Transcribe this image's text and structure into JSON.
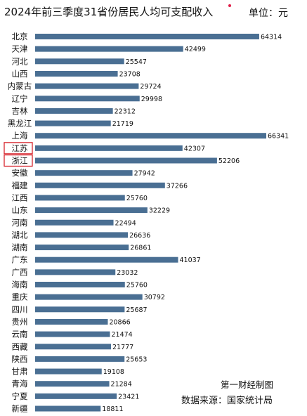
{
  "chart_data": {
    "type": "bar",
    "orientation": "horizontal",
    "title": "2024年前三季度31省份居民人均可支配收入",
    "unit": "单位：元",
    "source": "数据来源：国家统计局",
    "publisher": "第一财经制图",
    "bar_color": "#4a6f93",
    "highlight_color": "#d7262e",
    "highlighted": [
      "江苏",
      "浙江"
    ],
    "xlim": [
      0,
      70000
    ],
    "categories": [
      "北京",
      "天津",
      "河北",
      "山西",
      "内蒙古",
      "辽宁",
      "吉林",
      "黑龙江",
      "上海",
      "江苏",
      "浙江",
      "安徽",
      "福建",
      "江西",
      "山东",
      "河南",
      "湖北",
      "湖南",
      "广东",
      "广西",
      "海南",
      "重庆",
      "四川",
      "贵州",
      "云南",
      "西藏",
      "陕西",
      "甘肃",
      "青海",
      "宁夏",
      "新疆"
    ],
    "values": [
      64314,
      42499,
      25547,
      23708,
      29724,
      29998,
      22312,
      21719,
      66341,
      42307,
      52206,
      27942,
      37266,
      25760,
      32229,
      22494,
      26636,
      26861,
      41037,
      23032,
      25760,
      30792,
      25687,
      20866,
      21474,
      21777,
      25653,
      19108,
      21284,
      23421,
      18811
    ]
  }
}
